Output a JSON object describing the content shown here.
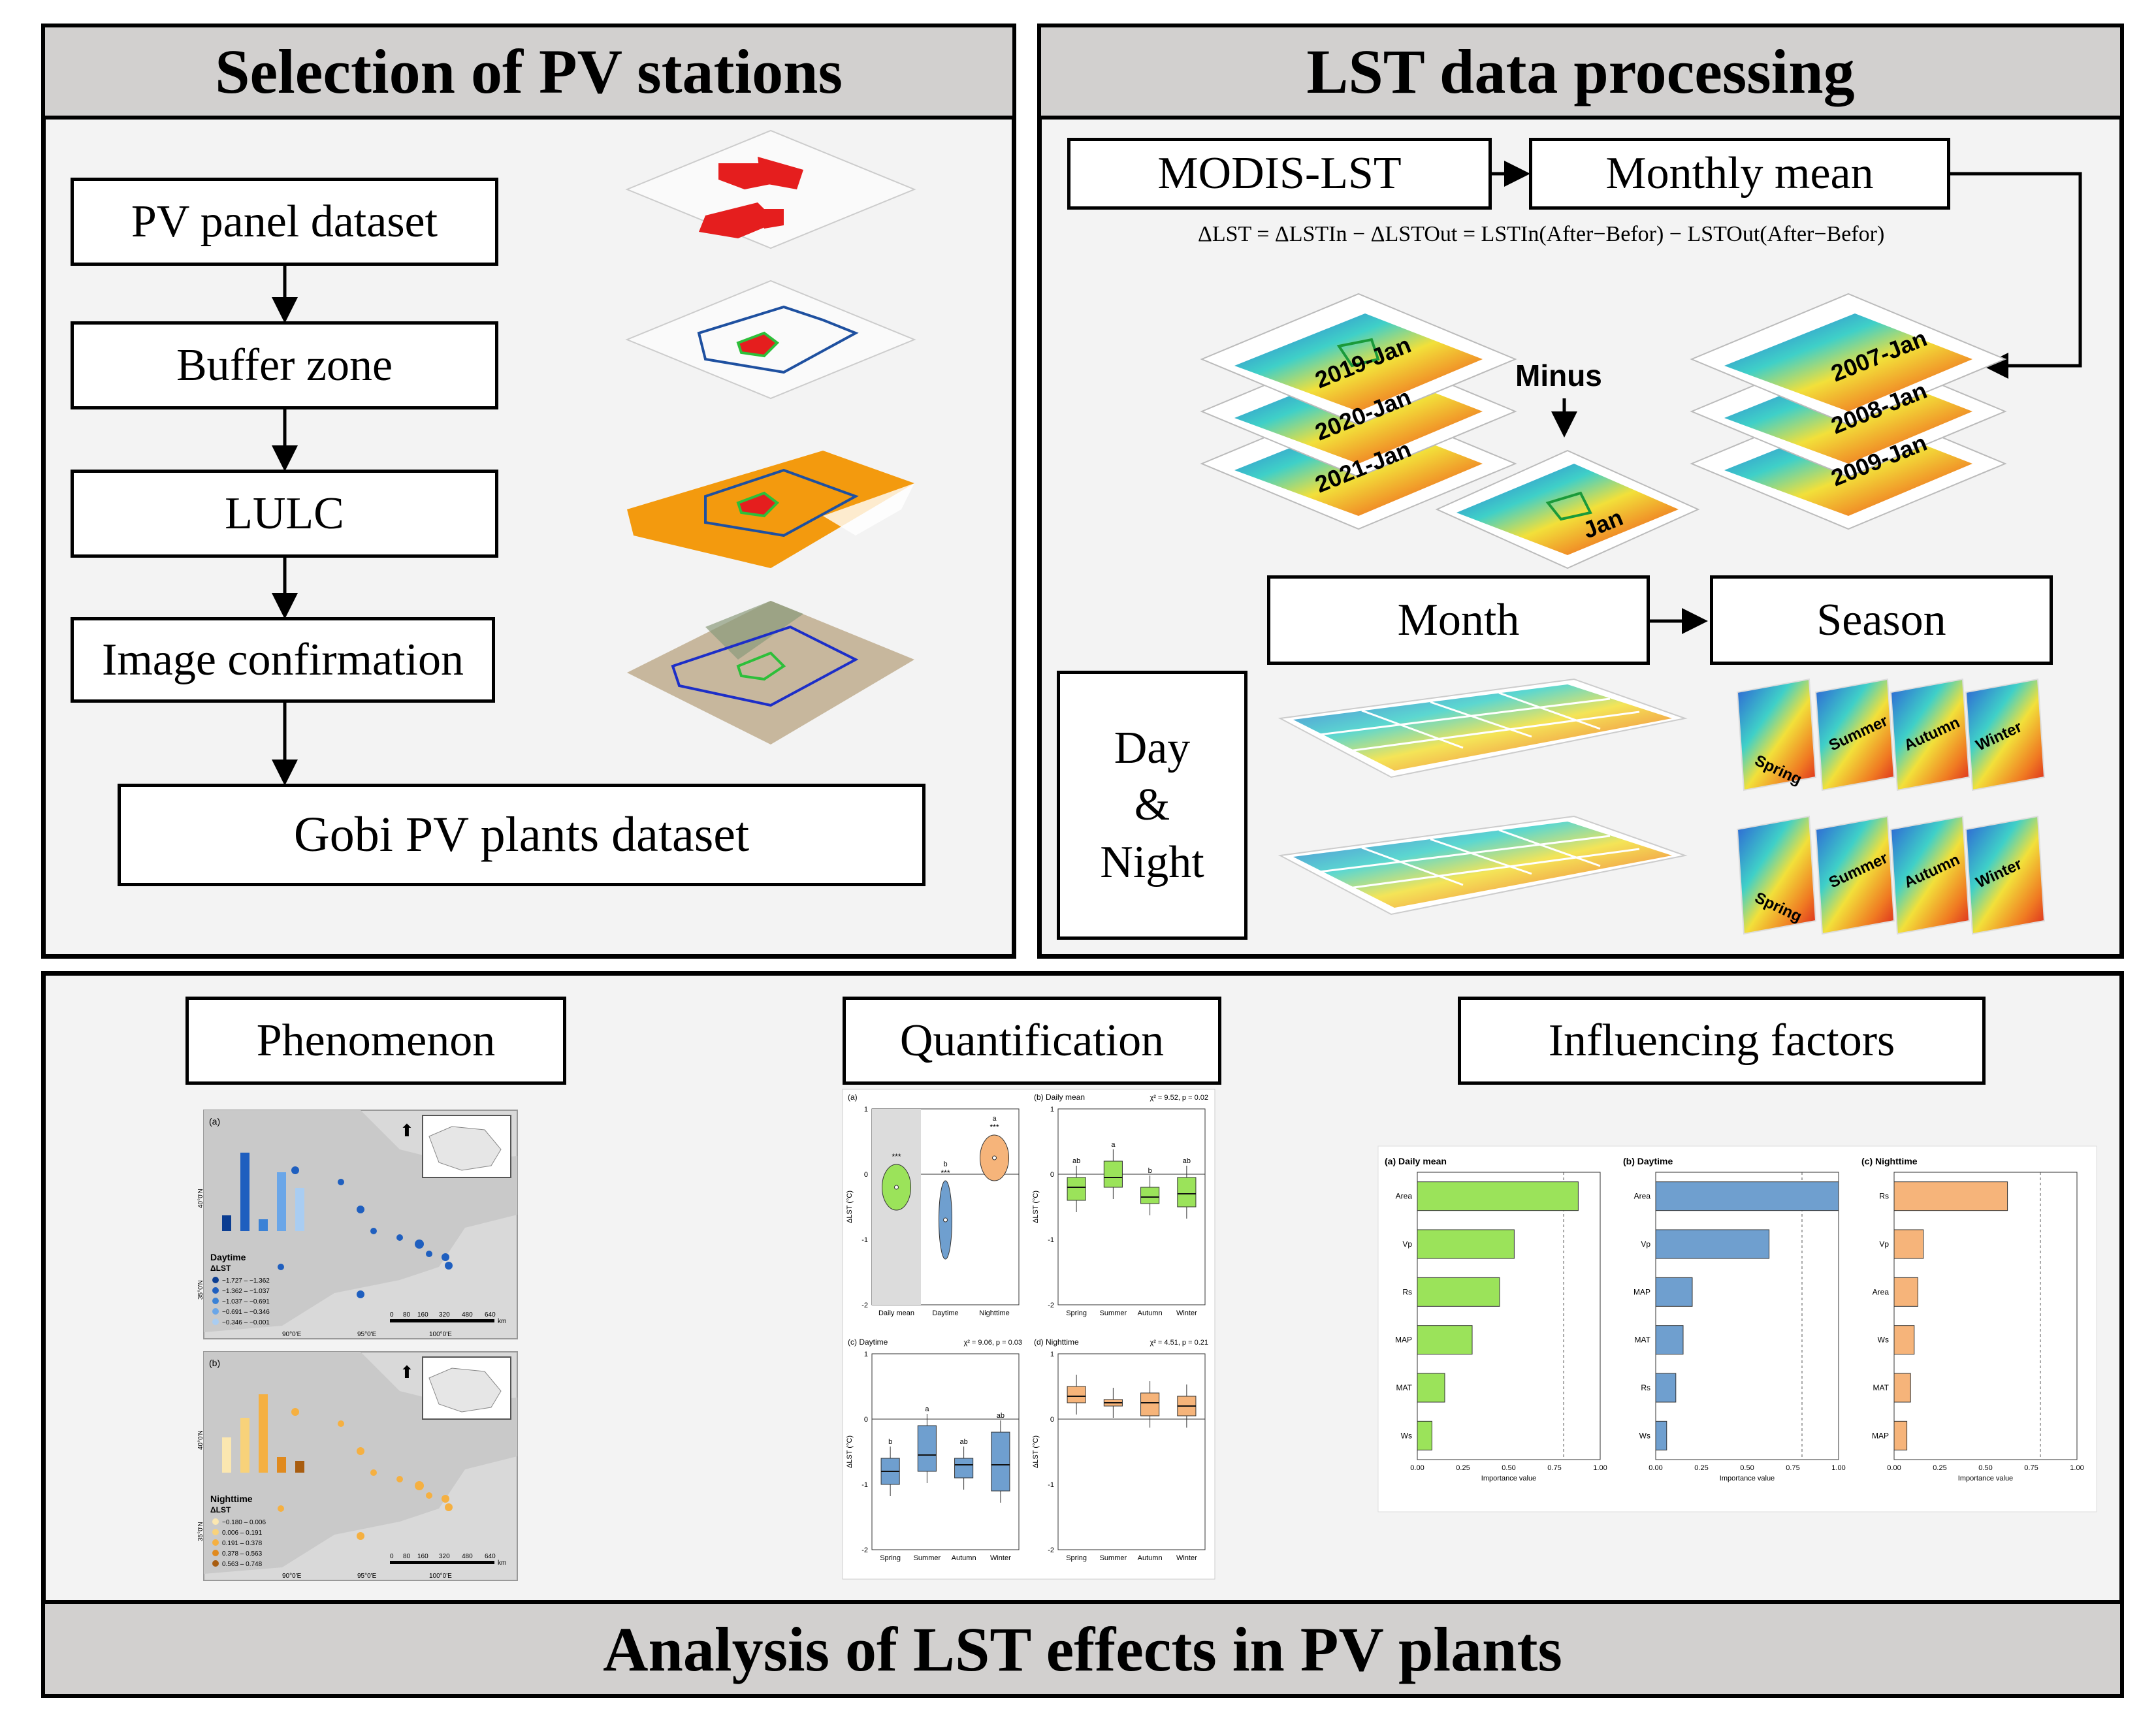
{
  "panel1": {
    "title": "Selection of PV stations",
    "steps": [
      "PV panel dataset",
      "Buffer zone",
      "LULC",
      "Image confirmation"
    ],
    "result": "Gobi PV plants dataset"
  },
  "panel2": {
    "title": "LST data processing",
    "source": "MODIS-LST",
    "monthly": "Monthly mean",
    "formula": "ΔLST = ΔLSTIn − ΔLSTOut = LSTIn(After−Befor) − LSTOut(After−Befor)",
    "after_layers": [
      "2019-Jan",
      "2020-Jan",
      "2021-Jan"
    ],
    "before_layers": [
      "2007-Jan",
      "2008-Jan",
      "2009-Jan"
    ],
    "minus": "Minus",
    "result_layer": "Jan",
    "month": "Month",
    "season": "Season",
    "daynight": [
      "Day",
      "&",
      "Night"
    ],
    "seasons": [
      "Spring",
      "Summer",
      "Autumn",
      "Winter"
    ]
  },
  "panel3": {
    "title": "Analysis of LST effects in PV plants",
    "phenomenon": {
      "label": "Phenomenon",
      "maps": [
        {
          "tag": "(a)",
          "legend_title": "Daytime",
          "var": "ΔLST",
          "classes": [
            "−1.727 – −1.362",
            "−1.362 – −1.037",
            "−1.037 – −0.691",
            "−0.691 – −0.346",
            "−0.346 – −0.001"
          ],
          "colors": [
            "#0b3d91",
            "#1f5fbf",
            "#3b82d6",
            "#6aa6e8",
            "#a9cdf2"
          ]
        },
        {
          "tag": "(b)",
          "legend_title": "Nighttime",
          "var": "ΔLST",
          "classes": [
            "−0.180 – 0.006",
            "0.006 – 0.191",
            "0.191 – 0.378",
            "0.378 – 0.563",
            "0.563 – 0.748"
          ],
          "colors": [
            "#fbe7b0",
            "#f8d27a",
            "#f5b041",
            "#e08a1e",
            "#a85d10"
          ]
        }
      ],
      "lon_ticks": [
        "90°0'E",
        "95°0'E",
        "100°0'E"
      ],
      "lat_ticks": [
        "40°0'N",
        "35°0'N"
      ],
      "scale_ticks": [
        "0",
        "80",
        "160",
        "320",
        "480",
        "640"
      ],
      "scale_unit": "km"
    },
    "quantification": {
      "label": "Quantification"
    },
    "factors": {
      "label": "Influencing factors"
    }
  },
  "chart_data": [
    {
      "type": "violin",
      "title": "(a)",
      "categories": [
        "Daily mean",
        "Daytime",
        "Nighttime"
      ],
      "ylabel": "ΔLST (°C)",
      "ylim": [
        -2,
        1
      ],
      "yticks": [
        "1",
        "0",
        "-1",
        "-2"
      ],
      "medians": [
        -0.2,
        -0.7,
        0.25
      ],
      "significance": [
        "***",
        "***",
        "***"
      ],
      "letters": [
        "",
        "b",
        "a"
      ],
      "colors": [
        "#9be35a",
        "#6f9fcf",
        "#f6b47a"
      ]
    },
    {
      "type": "box",
      "title": "(b) Daily mean",
      "stat": "χ² = 9.52, p = 0.02",
      "categories": [
        "Spring",
        "Summer",
        "Autumn",
        "Winter"
      ],
      "ylabel": "ΔLST (°C)",
      "ylim": [
        -2,
        1
      ],
      "yticks": [
        "1",
        "0",
        "-1",
        "-2"
      ],
      "medians": [
        -0.2,
        -0.05,
        -0.35,
        -0.3
      ],
      "q1": [
        -0.4,
        -0.2,
        -0.45,
        -0.5
      ],
      "q3": [
        -0.05,
        0.2,
        -0.2,
        -0.05
      ],
      "letters": [
        "ab",
        "a",
        "b",
        "ab"
      ],
      "color": "#9be35a"
    },
    {
      "type": "box",
      "title": "(c) Daytime",
      "stat": "χ² = 9.06, p = 0.03",
      "categories": [
        "Spring",
        "Summer",
        "Autumn",
        "Winter"
      ],
      "ylabel": "ΔLST (°C)",
      "ylim": [
        -2,
        1
      ],
      "yticks": [
        "1",
        "0",
        "-1",
        "-2"
      ],
      "medians": [
        -0.8,
        -0.55,
        -0.7,
        -0.7
      ],
      "q1": [
        -1.0,
        -0.8,
        -0.9,
        -1.1
      ],
      "q3": [
        -0.6,
        -0.1,
        -0.6,
        -0.2
      ],
      "letters": [
        "b",
        "a",
        "ab",
        "ab"
      ],
      "color": "#6f9fcf"
    },
    {
      "type": "box",
      "title": "(d) Nighttime",
      "stat": "χ² = 4.51, p = 0.21",
      "categories": [
        "Spring",
        "Summer",
        "Autumn",
        "Winter"
      ],
      "ylabel": "ΔLST (°C)",
      "ylim": [
        -2,
        1
      ],
      "yticks": [
        "1",
        "0",
        "-1",
        "-2"
      ],
      "medians": [
        0.35,
        0.25,
        0.25,
        0.2
      ],
      "q1": [
        0.25,
        0.2,
        0.05,
        0.05
      ],
      "q3": [
        0.5,
        0.3,
        0.4,
        0.35
      ],
      "letters": [],
      "color": "#f6b47a"
    },
    {
      "type": "bar",
      "orientation": "horizontal",
      "title": "(a) Daily mean",
      "categories": [
        "Area",
        "Vp",
        "Rs",
        "MAP",
        "MAT",
        "Ws"
      ],
      "values": [
        0.88,
        0.53,
        0.45,
        0.3,
        0.15,
        0.08
      ],
      "xlabel": "Importance value",
      "xlim": [
        0,
        1
      ],
      "xticks": [
        "0.00",
        "0.25",
        "0.50",
        "0.75",
        "1.00"
      ],
      "threshold": 0.8,
      "color": "#9be35a"
    },
    {
      "type": "bar",
      "orientation": "horizontal",
      "title": "(b) Daytime",
      "categories": [
        "Area",
        "Vp",
        "MAP",
        "MAT",
        "Rs",
        "Ws"
      ],
      "values": [
        1.0,
        0.62,
        0.2,
        0.15,
        0.11,
        0.06
      ],
      "xlabel": "Importance value",
      "xlim": [
        0,
        1
      ],
      "xticks": [
        "0.00",
        "0.25",
        "0.50",
        "0.75",
        "1.00"
      ],
      "threshold": 0.8,
      "color": "#6f9fcf"
    },
    {
      "type": "bar",
      "orientation": "horizontal",
      "title": "(c) Nighttime",
      "categories": [
        "Rs",
        "Vp",
        "Area",
        "Ws",
        "MAT",
        "MAP"
      ],
      "values": [
        0.62,
        0.16,
        0.13,
        0.11,
        0.09,
        0.07
      ],
      "xlabel": "Importance value",
      "xlim": [
        0,
        1
      ],
      "xticks": [
        "0.00",
        "0.25",
        "0.50",
        "0.75",
        "1.00"
      ],
      "threshold": 0.8,
      "color": "#f6b47a"
    },
    {
      "type": "bar",
      "title": "Daytime ΔLST map inset",
      "categories": [
        "−1.727 – −1.362",
        "−1.362 – −1.037",
        "−1.037 – −0.691",
        "−0.691 – −0.346",
        "−0.346 – −0.001"
      ],
      "values": [
        0.2,
        1.0,
        0.15,
        0.75,
        0.55
      ],
      "colors": [
        "#0b3d91",
        "#1f5fbf",
        "#3b82d6",
        "#6aa6e8",
        "#a9cdf2"
      ]
    },
    {
      "type": "bar",
      "title": "Nighttime ΔLST map inset",
      "categories": [
        "−0.180 – 0.006",
        "0.006 – 0.191",
        "0.191 – 0.378",
        "0.378 – 0.563",
        "0.563 – 0.748"
      ],
      "values": [
        0.45,
        0.7,
        1.0,
        0.2,
        0.15
      ],
      "colors": [
        "#fbe7b0",
        "#f8d27a",
        "#f5b041",
        "#e08a1e",
        "#a85d10"
      ]
    }
  ]
}
